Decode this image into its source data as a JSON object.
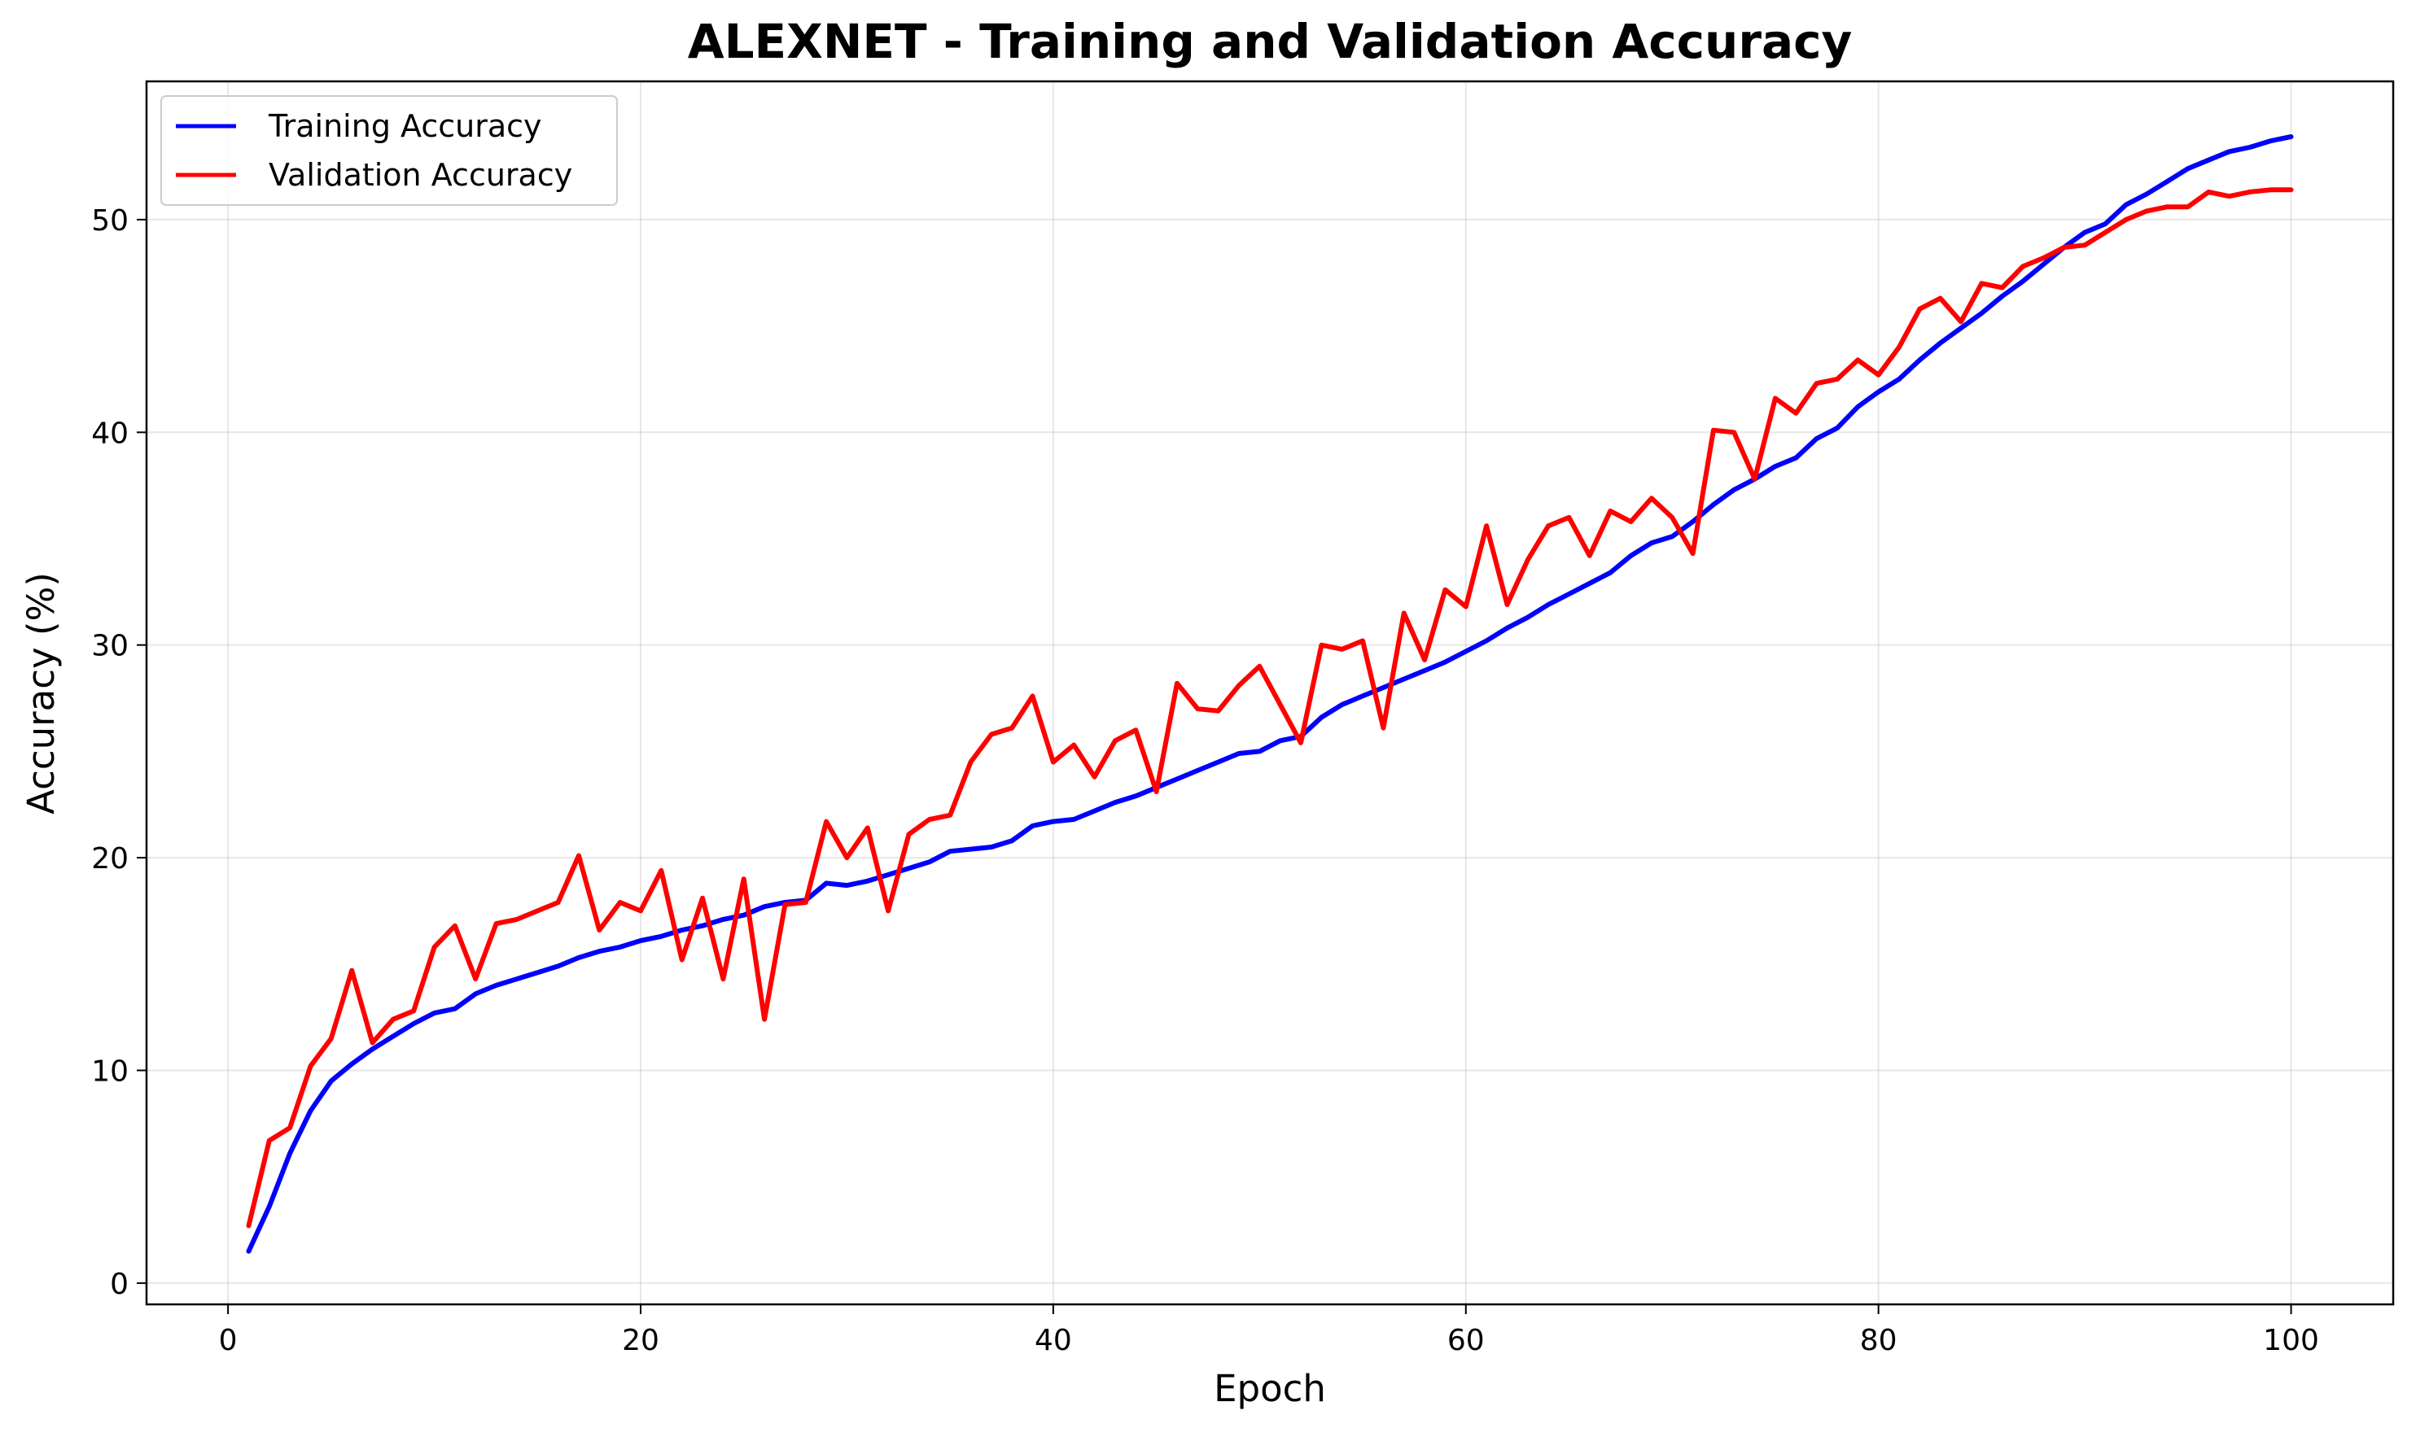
{
  "chart_data": {
    "type": "line",
    "title": "ALEXNET - Training and Validation Accuracy",
    "xlabel": "Epoch",
    "ylabel": "Accuracy (%)",
    "xlim": [
      -3.95,
      104.95
    ],
    "ylim": [
      -1.0,
      56.5
    ],
    "xticks": [
      0,
      20,
      40,
      60,
      80,
      100
    ],
    "yticks": [
      0,
      10,
      20,
      30,
      40,
      50
    ],
    "grid": true,
    "legend_position": "top-left",
    "x": [
      1,
      2,
      3,
      4,
      5,
      6,
      7,
      8,
      9,
      10,
      11,
      12,
      13,
      14,
      15,
      16,
      17,
      18,
      19,
      20,
      21,
      22,
      23,
      24,
      25,
      26,
      27,
      28,
      29,
      30,
      31,
      32,
      33,
      34,
      35,
      36,
      37,
      38,
      39,
      40,
      41,
      42,
      43,
      44,
      45,
      46,
      47,
      48,
      49,
      50,
      51,
      52,
      53,
      54,
      55,
      56,
      57,
      58,
      59,
      60,
      61,
      62,
      63,
      64,
      65,
      66,
      67,
      68,
      69,
      70,
      71,
      72,
      73,
      74,
      75,
      76,
      77,
      78,
      79,
      80,
      81,
      82,
      83,
      84,
      85,
      86,
      87,
      88,
      89,
      90,
      91,
      92,
      93,
      94,
      95,
      96,
      97,
      98,
      99,
      100
    ],
    "series": [
      {
        "name": "Training Accuracy",
        "color": "#0000ff",
        "values": [
          1.5,
          3.6,
          6.1,
          8.1,
          9.5,
          10.3,
          11.0,
          11.6,
          12.2,
          12.7,
          12.9,
          13.6,
          14.0,
          14.3,
          14.6,
          14.9,
          15.3,
          15.6,
          15.8,
          16.1,
          16.3,
          16.6,
          16.8,
          17.1,
          17.3,
          17.7,
          17.9,
          18.0,
          18.8,
          18.7,
          18.9,
          19.2,
          19.5,
          19.8,
          20.3,
          20.4,
          20.5,
          20.8,
          21.5,
          21.7,
          21.8,
          22.2,
          22.6,
          22.9,
          23.3,
          23.7,
          24.1,
          24.5,
          24.9,
          25.0,
          25.5,
          25.7,
          26.6,
          27.2,
          27.6,
          28.0,
          28.4,
          28.8,
          29.2,
          29.7,
          30.2,
          30.8,
          31.3,
          31.9,
          32.4,
          32.9,
          33.4,
          34.2,
          34.8,
          35.1,
          35.8,
          36.6,
          37.3,
          37.8,
          38.4,
          38.8,
          39.7,
          40.2,
          41.2,
          41.9,
          42.5,
          43.4,
          44.2,
          44.9,
          45.6,
          46.4,
          47.1,
          47.9,
          48.7,
          49.4,
          49.8,
          50.7,
          51.2,
          51.8,
          52.4,
          52.8,
          53.2,
          53.4,
          53.7,
          53.9
        ]
      },
      {
        "name": "Validation Accuracy",
        "color": "#ff0000",
        "values": [
          2.7,
          6.7,
          7.3,
          10.2,
          11.5,
          14.7,
          11.3,
          12.4,
          12.8,
          15.8,
          16.8,
          14.3,
          16.9,
          17.1,
          17.5,
          17.9,
          20.1,
          16.6,
          17.9,
          17.5,
          19.4,
          15.2,
          18.1,
          14.3,
          19.0,
          12.4,
          17.8,
          17.9,
          21.7,
          20.0,
          21.4,
          17.5,
          21.1,
          21.8,
          22.0,
          24.5,
          25.8,
          26.1,
          27.6,
          24.5,
          25.3,
          23.8,
          25.5,
          26.0,
          23.1,
          28.2,
          27.0,
          26.9,
          28.1,
          29.0,
          27.2,
          25.4,
          30.0,
          29.8,
          30.2,
          26.1,
          31.5,
          29.3,
          32.6,
          31.8,
          35.6,
          31.9,
          34.0,
          35.6,
          36.0,
          34.2,
          36.3,
          35.8,
          36.9,
          36.0,
          34.3,
          40.1,
          40.0,
          37.8,
          41.6,
          40.9,
          42.3,
          42.5,
          43.4,
          42.7,
          44.0,
          45.8,
          46.3,
          45.2,
          47.0,
          46.8,
          47.8,
          48.2,
          48.7,
          48.8,
          49.4,
          50.0,
          50.4,
          50.6,
          50.6,
          51.3,
          51.1,
          51.3,
          51.4,
          51.4
        ]
      }
    ]
  }
}
